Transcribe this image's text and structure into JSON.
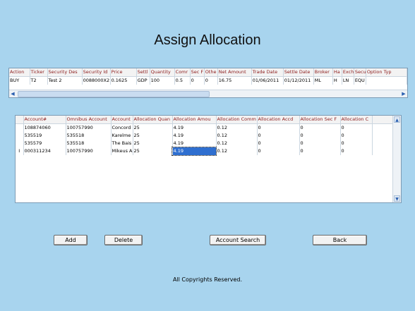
{
  "page": {
    "title": "Assign Allocation",
    "footer": "All Copyrights Reserved."
  },
  "trade_grid": {
    "headers": [
      "Action",
      "Ticker",
      "Security Des",
      "Security Id",
      "Price",
      "Settl",
      "Quantity",
      "Comr",
      "Sec F",
      "Othe",
      "Net Amount",
      "Trade Date",
      "Settle Date",
      "Broker",
      "Ha",
      "Exch",
      "Secu",
      "Option Typ"
    ],
    "rows": [
      [
        "BUY",
        "T2",
        "Test 2",
        "0088000X2",
        "0.1625",
        "GDP",
        "100",
        "0.5",
        "0",
        "0",
        "16.75",
        "01/06/2011",
        "01/12/2011",
        "ML",
        "H",
        "LN",
        "EQU",
        ""
      ]
    ]
  },
  "allocation_grid": {
    "headers": [
      "Account#",
      "Omnibus Account",
      "Account",
      "Allocation Quan",
      "Allocation Amou",
      "Allocation Comm",
      "Allocation Accd",
      "Allocation Sec F",
      "Allocation C"
    ],
    "rows": [
      [
        "108874060",
        "100757990",
        "Concord",
        "25",
        "4.19",
        "0.12",
        "0",
        "0",
        "0"
      ],
      [
        "535519",
        "535518",
        "Karelme",
        "25",
        "4.19",
        "0.12",
        "0",
        "0",
        "0"
      ],
      [
        "535579",
        "535518",
        "The Bais",
        "25",
        "4.19",
        "0.12",
        "0",
        "0",
        "0"
      ],
      [
        "000311234",
        "100757990",
        "Mikeus A",
        "25",
        "4.19",
        "0.12",
        "0",
        "0",
        "0"
      ]
    ]
  },
  "buttons": {
    "add": "Add",
    "delete": "Delete",
    "account_search": "Account Search",
    "back": "Back"
  },
  "icons": {
    "scroll_left": "◀",
    "scroll_right": "▶",
    "scroll_up": "▲",
    "scroll_down": "▼",
    "row_cursor": "I"
  }
}
